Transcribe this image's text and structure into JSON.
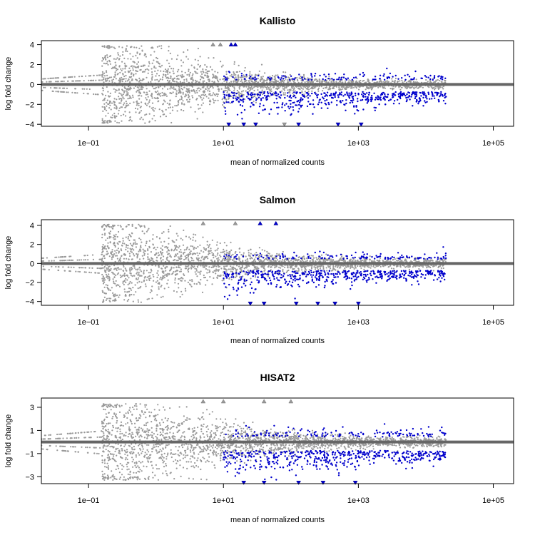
{
  "chart_data": [
    {
      "type": "scatter",
      "title": "Kallisto",
      "xlabel": "mean of normalized counts",
      "ylabel": "log fold change",
      "x_scale": "log10",
      "xlim": [
        0.02,
        200000
      ],
      "ylim": [
        -4.2,
        4.4
      ],
      "x_ticks": [
        0.1,
        10,
        1000,
        100000
      ],
      "x_tick_labels": [
        "1e−01",
        "1e+01",
        "1e+03",
        "1e+05"
      ],
      "y_ticks": [
        -4,
        -2,
        0,
        2,
        4
      ],
      "y_tick_labels": [
        "−4",
        "−2",
        "0",
        "2",
        "4"
      ],
      "grid": false,
      "reference_line": 0,
      "series": [
        {
          "name": "",
          "color": "#999999",
          "pattern": "dense cloud of non-significant genes, spread largest at low counts"
        },
        {
          "name": "",
          "color": "#0000cc",
          "pattern": "significant genes, mostly down-regulated, counts 10 to 3e4"
        }
      ],
      "clipped_points": [
        {
          "x": 7,
          "y": 4,
          "dir": "up",
          "sig": false
        },
        {
          "x": 9,
          "y": 4,
          "dir": "up",
          "sig": false
        },
        {
          "x": 13,
          "y": 4,
          "dir": "up",
          "sig": true
        },
        {
          "x": 15,
          "y": 4,
          "dir": "up",
          "sig": true
        },
        {
          "x": 12,
          "y": -4,
          "dir": "down",
          "sig": true
        },
        {
          "x": 20,
          "y": -4,
          "dir": "down",
          "sig": true
        },
        {
          "x": 30,
          "y": -4,
          "dir": "down",
          "sig": true
        },
        {
          "x": 80,
          "y": -4,
          "dir": "down",
          "sig": false
        },
        {
          "x": 130,
          "y": -4,
          "dir": "down",
          "sig": true
        },
        {
          "x": 500,
          "y": -4,
          "dir": "down",
          "sig": true
        },
        {
          "x": 1100,
          "y": -4,
          "dir": "down",
          "sig": true
        }
      ]
    },
    {
      "type": "scatter",
      "title": "Salmon",
      "xlabel": "mean of normalized counts",
      "ylabel": "log fold change",
      "x_scale": "log10",
      "xlim": [
        0.02,
        200000
      ],
      "ylim": [
        -4.4,
        4.6
      ],
      "x_ticks": [
        0.1,
        10,
        1000,
        100000
      ],
      "x_tick_labels": [
        "1e−01",
        "1e+01",
        "1e+03",
        "1e+05"
      ],
      "y_ticks": [
        -4,
        -2,
        0,
        2,
        4
      ],
      "y_tick_labels": [
        "−4",
        "−2",
        "0",
        "2",
        "4"
      ],
      "grid": false,
      "reference_line": 0,
      "series": [
        {
          "name": "",
          "color": "#999999",
          "pattern": "dense cloud of non-significant genes, spread largest at low counts"
        },
        {
          "name": "",
          "color": "#0000cc",
          "pattern": "significant genes, mostly down-regulated, counts 10 to 3e4"
        }
      ],
      "clipped_points": [
        {
          "x": 5,
          "y": 4.2,
          "dir": "up",
          "sig": false
        },
        {
          "x": 15,
          "y": 4.2,
          "dir": "up",
          "sig": false
        },
        {
          "x": 35,
          "y": 4.2,
          "dir": "up",
          "sig": true
        },
        {
          "x": 60,
          "y": 4.2,
          "dir": "up",
          "sig": true
        },
        {
          "x": 25,
          "y": -4.2,
          "dir": "down",
          "sig": true
        },
        {
          "x": 40,
          "y": -4.2,
          "dir": "down",
          "sig": true
        },
        {
          "x": 120,
          "y": -4.2,
          "dir": "down",
          "sig": true
        },
        {
          "x": 250,
          "y": -4.2,
          "dir": "down",
          "sig": true
        },
        {
          "x": 450,
          "y": -4.2,
          "dir": "down",
          "sig": true
        },
        {
          "x": 1000,
          "y": -4.2,
          "dir": "down",
          "sig": true
        }
      ]
    },
    {
      "type": "scatter",
      "title": "HISAT2",
      "xlabel": "mean of normalized counts",
      "ylabel": "log fold change",
      "x_scale": "log10",
      "xlim": [
        0.02,
        200000
      ],
      "ylim": [
        -3.6,
        3.8
      ],
      "x_ticks": [
        0.1,
        10,
        1000,
        100000
      ],
      "x_tick_labels": [
        "1e−01",
        "1e+01",
        "1e+03",
        "1e+05"
      ],
      "y_ticks": [
        -3,
        -1,
        1,
        3
      ],
      "y_tick_labels": [
        "−3",
        "−1",
        "1",
        "3"
      ],
      "grid": false,
      "reference_line": 0,
      "series": [
        {
          "name": "",
          "color": "#999999",
          "pattern": "dense cloud of non-significant genes, spread largest at low counts"
        },
        {
          "name": "",
          "color": "#0000cc",
          "pattern": "significant genes, mostly down-regulated, counts 10 to 3e4"
        }
      ],
      "clipped_points": [
        {
          "x": 5,
          "y": 3.5,
          "dir": "up",
          "sig": false
        },
        {
          "x": 10,
          "y": 3.5,
          "dir": "up",
          "sig": false
        },
        {
          "x": 40,
          "y": 3.5,
          "dir": "up",
          "sig": false
        },
        {
          "x": 100,
          "y": 3.5,
          "dir": "up",
          "sig": false
        },
        {
          "x": 20,
          "y": -3.5,
          "dir": "down",
          "sig": true
        },
        {
          "x": 40,
          "y": -3.5,
          "dir": "down",
          "sig": true
        },
        {
          "x": 130,
          "y": -3.5,
          "dir": "down",
          "sig": true
        },
        {
          "x": 300,
          "y": -3.5,
          "dir": "down",
          "sig": true
        },
        {
          "x": 900,
          "y": -3.5,
          "dir": "down",
          "sig": true
        }
      ]
    }
  ]
}
